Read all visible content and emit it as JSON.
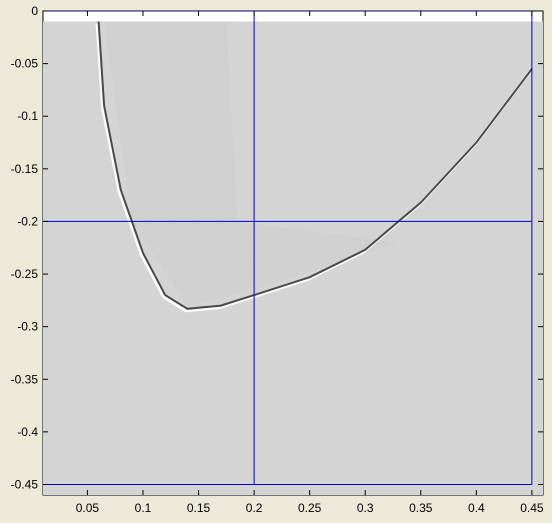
{
  "chart_data": {
    "type": "heatmap",
    "title": "",
    "xlabel": "",
    "ylabel": "",
    "xlim": [
      0.01,
      0.46
    ],
    "ylim": [
      -0.46,
      0
    ],
    "x_ticks": [
      0.05,
      0.1,
      0.15,
      0.2,
      0.25,
      0.3,
      0.35,
      0.4,
      0.45
    ],
    "x_tick_labels": [
      "0.05",
      "0.1",
      "0.15",
      "0.2",
      "0.25",
      "0.3",
      "0.35",
      "0.4",
      "0.45"
    ],
    "y_ticks": [
      0,
      -0.05,
      -0.1,
      -0.15,
      -0.2,
      -0.25,
      -0.3,
      -0.35,
      -0.4,
      -0.45
    ],
    "y_tick_labels": [
      "0",
      "-0.05",
      "-0.1",
      "-0.15",
      "-0.2",
      "-0.25",
      "-0.3",
      "-0.35",
      "-0.4",
      "-0.45"
    ],
    "grid": false,
    "image_extent": {
      "x": [
        0.01,
        0.46
      ],
      "y": [
        -0.46,
        -0.01
      ]
    },
    "background_value_color": "#d4d4d4",
    "wavefront": {
      "description_points": [
        {
          "x": 0.06,
          "y": -0.01
        },
        {
          "x": 0.065,
          "y": -0.09
        },
        {
          "x": 0.08,
          "y": -0.17
        },
        {
          "x": 0.1,
          "y": -0.23
        },
        {
          "x": 0.12,
          "y": -0.27
        },
        {
          "x": 0.14,
          "y": -0.283
        },
        {
          "x": 0.17,
          "y": -0.28
        },
        {
          "x": 0.2,
          "y": -0.27
        },
        {
          "x": 0.25,
          "y": -0.253
        },
        {
          "x": 0.3,
          "y": -0.227
        },
        {
          "x": 0.35,
          "y": -0.182
        },
        {
          "x": 0.4,
          "y": -0.125
        },
        {
          "x": 0.45,
          "y": -0.055
        }
      ]
    },
    "overlay_lines": [
      {
        "orientation": "vertical",
        "x": 0.2
      },
      {
        "orientation": "vertical",
        "x": 0.45
      },
      {
        "orientation": "horizontal",
        "y": 0
      },
      {
        "orientation": "horizontal",
        "y": -0.2
      },
      {
        "orientation": "horizontal",
        "y": -0.45
      }
    ],
    "overlay_color": "#0000cc"
  }
}
